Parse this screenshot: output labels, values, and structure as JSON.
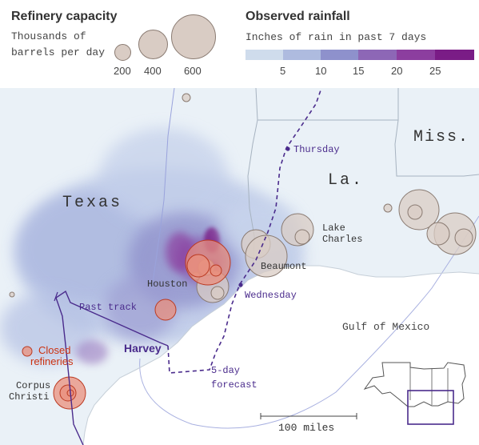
{
  "legend": {
    "capacity_title": "Refinery capacity",
    "capacity_subtitle_line1": "Thousands of",
    "capacity_subtitle_line2": "barrels per day",
    "capacity_ticks": [
      "200",
      "400",
      "600"
    ],
    "rain_title": "Observed rainfall",
    "rain_subtitle": "Inches of rain in past 7 days",
    "rain_ticks": [
      "5",
      "10",
      "15",
      "20",
      "25"
    ],
    "rain_colors": [
      "#cfdcec",
      "#aebbdf",
      "#8e91cc",
      "#8d67b6",
      "#8c3e9f",
      "#7a1c86"
    ]
  },
  "map": {
    "labels": {
      "texas": "Texas",
      "louisiana": "La.",
      "mississippi": "Miss.",
      "gulf": "Gulf of Mexico",
      "houston": "Houston",
      "beaumont": "Beaumont",
      "lake_charles_1": "Lake",
      "lake_charles_2": "Charles",
      "corpus_1": "Corpus",
      "corpus_2": "Christi",
      "closed_1": "Closed",
      "closed_2": "refineries"
    },
    "storm": {
      "name": "Harvey",
      "past_track": "Past track",
      "forecast_1": "5-day",
      "forecast_2": "forecast",
      "thursday": "Thursday",
      "wednesday": "Wednesday"
    },
    "scale_label": "100 miles",
    "colors": {
      "land": "#eaf1f7",
      "water": "#ffffff",
      "refinery_open": "#d9ccc4",
      "refinery_closed": "#e98f7c",
      "closed_label": "#cc3311",
      "track": "#4a2b8c"
    }
  }
}
